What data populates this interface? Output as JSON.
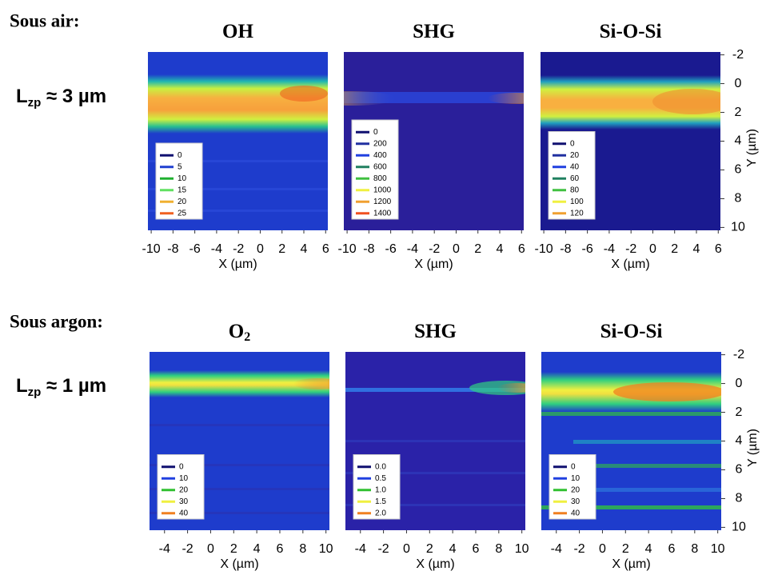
{
  "rows": [
    {
      "condition": "Sous air:",
      "lzp": "L",
      "lzp_subscript": "zp",
      "lzp_rest": " ≈ 3 µm"
    },
    {
      "condition": "Sous argon:",
      "lzp": "L",
      "lzp_subscript": "zp",
      "lzp_rest": " ≈ 1 µm"
    }
  ],
  "chart_data": [
    {
      "type": "contour",
      "title": "OH",
      "xlabel": "X  (µm)",
      "xlim": [
        -10.3,
        6.2
      ],
      "xticks": [
        -10,
        -8,
        -6,
        -4,
        -2,
        0,
        2,
        4,
        6
      ],
      "ylim": [
        10.2,
        -2.2
      ],
      "levels": [
        0,
        5,
        10,
        15,
        20,
        25
      ],
      "colors": [
        "#101070",
        "#2040d0",
        "#20b030",
        "#60e060",
        "#f0b030",
        "#f06020"
      ]
    },
    {
      "type": "contour",
      "title": "SHG",
      "xlabel": "X  (µm)",
      "xlim": [
        -10.3,
        6.2
      ],
      "xticks": [
        -10,
        -8,
        -6,
        -4,
        -2,
        0,
        2,
        4,
        6
      ],
      "ylim": [
        10.2,
        -2.2
      ],
      "levels": [
        0,
        200,
        400,
        600,
        800,
        1000,
        1200,
        1400
      ],
      "colors": [
        "#101070",
        "#2030a0",
        "#2040e0",
        "#208060",
        "#40c040",
        "#f0f040",
        "#f0a030",
        "#f05020"
      ]
    },
    {
      "type": "contour",
      "title": "Si-O-Si",
      "xlabel": "X  (µm)",
      "xlim": [
        -10.3,
        6.2
      ],
      "xticks": [
        -10,
        -8,
        -6,
        -4,
        -2,
        0,
        2,
        4,
        6
      ],
      "ylim": [
        10.2,
        -2.2
      ],
      "yticks": [
        -2,
        0,
        2,
        4,
        6,
        8,
        10
      ],
      "ylabel": "Y (µm)",
      "levels": [
        0,
        20,
        40,
        60,
        80,
        100,
        120
      ],
      "colors": [
        "#101070",
        "#2030a0",
        "#2040e0",
        "#208060",
        "#40c040",
        "#f0f040",
        "#f0a030"
      ]
    },
    {
      "type": "contour",
      "title": "O",
      "title_subscript": "2",
      "xlabel": "X  (µm)",
      "xlim": [
        -5.3,
        10.3
      ],
      "xticks": [
        -4,
        -2,
        0,
        2,
        4,
        6,
        8,
        10
      ],
      "ylim": [
        10.2,
        -2.2
      ],
      "levels": [
        0,
        10,
        20,
        30,
        40
      ],
      "colors": [
        "#101070",
        "#2040e0",
        "#30c030",
        "#f0f040",
        "#f08020"
      ]
    },
    {
      "type": "contour",
      "title": "SHG",
      "xlabel": "X  (µm)",
      "xlim": [
        -5.3,
        10.3
      ],
      "xticks": [
        -4,
        -2,
        0,
        2,
        4,
        6,
        8,
        10
      ],
      "ylim": [
        10.2,
        -2.2
      ],
      "levels": [
        {
          "value": 0,
          "label": "0.0"
        },
        0.5,
        {
          "value": 1,
          "label": "1.0"
        },
        1.5,
        {
          "value": 2,
          "label": "2.0"
        }
      ],
      "colors": [
        "#101070",
        "#2040e0",
        "#30c030",
        "#f0f040",
        "#f08020"
      ]
    },
    {
      "type": "contour",
      "title": "Si-O-Si",
      "xlabel": "X  (µm)",
      "xlim": [
        -5.3,
        10.3
      ],
      "xticks": [
        -4,
        -2,
        0,
        2,
        4,
        6,
        8,
        10
      ],
      "ylim": [
        10.2,
        -2.2
      ],
      "yticks": [
        -2,
        0,
        2,
        4,
        6,
        8,
        10
      ],
      "ylabel": "Y (µm)",
      "levels": [
        0,
        10,
        20,
        30,
        40
      ],
      "colors": [
        "#101070",
        "#2040e0",
        "#30c030",
        "#f0f040",
        "#f08020"
      ]
    }
  ]
}
